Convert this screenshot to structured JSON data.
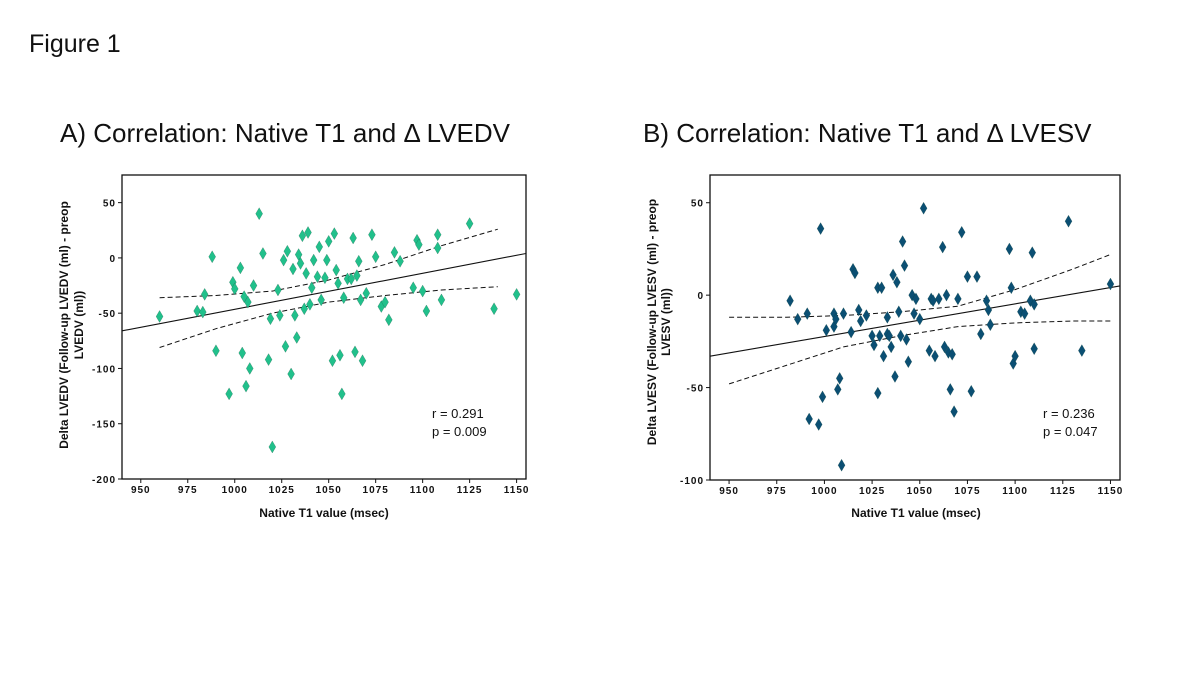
{
  "figure_title": "Figure 1",
  "chart_data": [
    {
      "type": "scatter",
      "title": "A) Correlation: Native T1 and Δ LVEDV",
      "xlabel": "Native T1 value (msec)",
      "ylabel": [
        "Delta LVEDV (Follow-up LVEDV (ml) - preop",
        "LVEDV (ml))"
      ],
      "xlim": [
        940,
        1155
      ],
      "ylim": [
        -200,
        75
      ],
      "xticks": [
        950,
        975,
        1000,
        1025,
        1050,
        1075,
        1100,
        1125,
        1150
      ],
      "yticks": [
        50,
        0,
        -50,
        -100,
        -150,
        -200
      ],
      "marker_color": "#21c08b",
      "stats": [
        "r = 0.291",
        "p = 0.009"
      ],
      "grid": false,
      "fit": {
        "x": [
          940,
          1155
        ],
        "y": [
          -66,
          4
        ]
      },
      "ci_upper": {
        "x": [
          960,
          990,
          1020,
          1050,
          1080,
          1110,
          1140
        ],
        "y": [
          -36,
          -34,
          -30,
          -20,
          -6,
          11,
          26
        ]
      },
      "ci_lower": {
        "x": [
          960,
          990,
          1020,
          1050,
          1080,
          1110,
          1140
        ],
        "y": [
          -81,
          -64,
          -50,
          -40,
          -34,
          -29,
          -26
        ]
      },
      "points": [
        [
          960,
          -53
        ],
        [
          980,
          -48
        ],
        [
          983,
          -49
        ],
        [
          984,
          -33
        ],
        [
          988,
          1
        ],
        [
          990,
          -84
        ],
        [
          997,
          -123
        ],
        [
          999,
          -22
        ],
        [
          1000,
          -28
        ],
        [
          1003,
          -9
        ],
        [
          1004,
          -86
        ],
        [
          1005,
          -35
        ],
        [
          1006,
          -116
        ],
        [
          1007,
          -40
        ],
        [
          1008,
          -100
        ],
        [
          1010,
          -25
        ],
        [
          1013,
          40
        ],
        [
          1015,
          4
        ],
        [
          1018,
          -92
        ],
        [
          1019,
          -55
        ],
        [
          1020,
          -171
        ],
        [
          1023,
          -29
        ],
        [
          1024,
          -52
        ],
        [
          1026,
          -2
        ],
        [
          1027,
          -80
        ],
        [
          1028,
          6
        ],
        [
          1030,
          -105
        ],
        [
          1031,
          -10
        ],
        [
          1032,
          -52
        ],
        [
          1033,
          -72
        ],
        [
          1034,
          3
        ],
        [
          1035,
          -5
        ],
        [
          1036,
          20
        ],
        [
          1037,
          -46
        ],
        [
          1038,
          -14
        ],
        [
          1039,
          23
        ],
        [
          1040,
          -42
        ],
        [
          1041,
          -27
        ],
        [
          1042,
          -2
        ],
        [
          1044,
          -17
        ],
        [
          1045,
          10
        ],
        [
          1046,
          -38
        ],
        [
          1048,
          -18
        ],
        [
          1049,
          -2
        ],
        [
          1050,
          15
        ],
        [
          1052,
          -93
        ],
        [
          1053,
          22
        ],
        [
          1054,
          -11
        ],
        [
          1055,
          -23
        ],
        [
          1056,
          -88
        ],
        [
          1057,
          -123
        ],
        [
          1058,
          -36
        ],
        [
          1060,
          -19
        ],
        [
          1062,
          -19
        ],
        [
          1063,
          18
        ],
        [
          1064,
          -85
        ],
        [
          1065,
          -16
        ],
        [
          1066,
          -3
        ],
        [
          1067,
          -38
        ],
        [
          1068,
          -93
        ],
        [
          1070,
          -32
        ],
        [
          1073,
          21
        ],
        [
          1075,
          1
        ],
        [
          1078,
          -44
        ],
        [
          1080,
          -40
        ],
        [
          1082,
          -56
        ],
        [
          1085,
          5
        ],
        [
          1088,
          -3
        ],
        [
          1095,
          -27
        ],
        [
          1097,
          16
        ],
        [
          1098,
          12
        ],
        [
          1100,
          -30
        ],
        [
          1102,
          -48
        ],
        [
          1108,
          21
        ],
        [
          1108,
          9
        ],
        [
          1110,
          -38
        ],
        [
          1125,
          31
        ],
        [
          1138,
          -46
        ],
        [
          1150,
          -33
        ]
      ]
    },
    {
      "type": "scatter",
      "title": "B) Correlation: Native T1 and Δ LVESV",
      "xlabel": "Native T1 value (msec)",
      "ylabel": [
        "Delta LVESV (Follow-up LVESV (ml) - preop",
        "LVESV (ml))"
      ],
      "xlim": [
        940,
        1155
      ],
      "ylim": [
        -100,
        65
      ],
      "xticks": [
        950,
        975,
        1000,
        1025,
        1050,
        1075,
        1100,
        1125,
        1150
      ],
      "yticks": [
        50,
        0,
        -50,
        -100
      ],
      "marker_color": "#0b4f73",
      "stats": [
        "r = 0.236",
        "p = 0.047"
      ],
      "grid": false,
      "fit": {
        "x": [
          940,
          1155
        ],
        "y": [
          -33,
          5
        ]
      },
      "ci_upper": {
        "x": [
          950,
          980,
          1010,
          1040,
          1070,
          1100,
          1130,
          1150
        ],
        "y": [
          -12,
          -12,
          -11,
          -9,
          -6,
          3,
          14,
          22
        ]
      },
      "ci_lower": {
        "x": [
          950,
          980,
          1010,
          1040,
          1070,
          1100,
          1130,
          1150
        ],
        "y": [
          -48,
          -38,
          -28,
          -22,
          -17,
          -15,
          -14,
          -14
        ]
      },
      "points": [
        [
          982,
          -3
        ],
        [
          986,
          -13
        ],
        [
          991,
          -10
        ],
        [
          992,
          -67
        ],
        [
          997,
          -70
        ],
        [
          998,
          36
        ],
        [
          999,
          -55
        ],
        [
          1001,
          -19
        ],
        [
          1005,
          -17
        ],
        [
          1005,
          -10
        ],
        [
          1006,
          -13
        ],
        [
          1007,
          -51
        ],
        [
          1008,
          -45
        ],
        [
          1009,
          -92
        ],
        [
          1010,
          -10
        ],
        [
          1014,
          -20
        ],
        [
          1015,
          14
        ],
        [
          1016,
          12
        ],
        [
          1018,
          -8
        ],
        [
          1019,
          -14
        ],
        [
          1022,
          -11
        ],
        [
          1025,
          -22
        ],
        [
          1026,
          -27
        ],
        [
          1028,
          -53
        ],
        [
          1028,
          4
        ],
        [
          1029,
          -22
        ],
        [
          1030,
          4
        ],
        [
          1031,
          -33
        ],
        [
          1033,
          -12
        ],
        [
          1033,
          -21
        ],
        [
          1034,
          -22
        ],
        [
          1035,
          -28
        ],
        [
          1036,
          11
        ],
        [
          1037,
          -44
        ],
        [
          1038,
          7
        ],
        [
          1039,
          -9
        ],
        [
          1040,
          -22
        ],
        [
          1041,
          29
        ],
        [
          1042,
          16
        ],
        [
          1043,
          -24
        ],
        [
          1044,
          -36
        ],
        [
          1046,
          0
        ],
        [
          1047,
          -10
        ],
        [
          1048,
          -2
        ],
        [
          1050,
          -13
        ],
        [
          1052,
          47
        ],
        [
          1055,
          -30
        ],
        [
          1056,
          -2
        ],
        [
          1057,
          -3
        ],
        [
          1058,
          -33
        ],
        [
          1060,
          -2
        ],
        [
          1062,
          26
        ],
        [
          1063,
          -28
        ],
        [
          1064,
          0
        ],
        [
          1065,
          -31
        ],
        [
          1066,
          -51
        ],
        [
          1067,
          -32
        ],
        [
          1068,
          -63
        ],
        [
          1070,
          -2
        ],
        [
          1072,
          34
        ],
        [
          1075,
          10
        ],
        [
          1077,
          -52
        ],
        [
          1080,
          10
        ],
        [
          1082,
          -21
        ],
        [
          1085,
          -3
        ],
        [
          1086,
          -8
        ],
        [
          1087,
          -16
        ],
        [
          1097,
          25
        ],
        [
          1098,
          4
        ],
        [
          1099,
          -37
        ],
        [
          1100,
          -33
        ],
        [
          1103,
          -9
        ],
        [
          1105,
          -10
        ],
        [
          1108,
          -3
        ],
        [
          1109,
          23
        ],
        [
          1110,
          -29
        ],
        [
          1110,
          -5
        ],
        [
          1128,
          40
        ],
        [
          1135,
          -30
        ],
        [
          1150,
          6
        ]
      ]
    }
  ]
}
